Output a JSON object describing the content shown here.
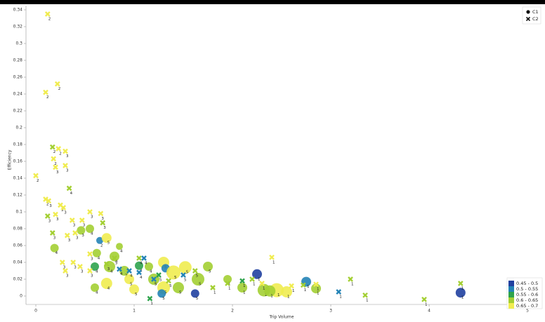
{
  "chart_data": {
    "type": "scatter",
    "x_label": "Trip Volume",
    "y_label": "Efficiency",
    "xlim": [
      -0.1,
      5.1
    ],
    "ylim": [
      -0.01,
      0.345
    ],
    "xticks": [
      0,
      1,
      2,
      3,
      4,
      5
    ],
    "yticks": [
      0,
      0.02,
      0.04,
      0.06,
      0.08,
      0.1,
      0.12,
      0.14,
      0.16,
      0.18,
      0.2,
      0.22,
      0.24,
      0.26,
      0.28,
      0.3,
      0.32,
      0.34
    ],
    "legend": "top-right",
    "color_scale": {
      "bins": [
        0.45,
        0.5,
        0.55,
        0.6,
        0.65,
        0.7
      ],
      "labels": [
        "0.45 - 0.5",
        "0.5 - 0.55",
        "0.55 - 0.6",
        "0.6 - 0.65",
        "0.65 - 0.7"
      ],
      "colors": [
        "#2040a0",
        "#2383b6",
        "#2ea34c",
        "#a3cf33",
        "#f0ec50"
      ],
      "legend": "bottom-right"
    },
    "series": [
      {
        "name": "C1",
        "marker": "circle",
        "x": [
          0.19,
          0.46,
          0.55,
          0.65,
          0.72,
          0.85,
          0.62,
          0.8,
          0.75,
          0.6,
          0.9,
          1.05,
          1.15,
          1.3,
          1.32,
          1.52,
          1.75,
          1.65,
          1.4,
          1.2,
          0.95,
          1.0,
          1.3,
          1.45,
          1.28,
          0.6,
          0.72,
          1.62,
          1.95,
          2.1,
          2.25,
          2.32,
          2.45,
          2.38,
          2.55,
          2.75,
          2.85,
          4.32
        ],
        "values": [
          0.057,
          0.078,
          0.08,
          0.066,
          0.069,
          0.059,
          0.051,
          0.047,
          0.035,
          0.035,
          0.03,
          0.036,
          0.035,
          0.04,
          0.033,
          0.034,
          0.035,
          0.02,
          0.028,
          0.02,
          0.02,
          0.008,
          0.01,
          0.01,
          0.003,
          0.01,
          0.015,
          0.003,
          0.02,
          0.01,
          0.026,
          0.007,
          0.007,
          0.006,
          0.005,
          0.017,
          0.009,
          0.004
        ],
        "sizes": [
          6,
          6,
          6,
          5,
          7,
          5,
          6,
          7,
          8,
          6,
          7,
          6,
          6,
          8,
          6,
          9,
          7,
          9,
          10,
          8,
          7,
          7,
          9,
          8,
          6,
          6,
          8,
          6,
          6,
          7,
          7,
          9,
          10,
          8,
          8,
          7,
          7,
          7
        ],
        "z": [
          0.6,
          0.6,
          0.6,
          0.52,
          0.66,
          0.6,
          0.6,
          0.63,
          0.6,
          0.55,
          0.6,
          0.55,
          0.6,
          0.66,
          0.52,
          0.65,
          0.6,
          0.63,
          0.68,
          0.62,
          0.66,
          0.66,
          0.68,
          0.6,
          0.5,
          0.6,
          0.67,
          0.48,
          0.6,
          0.64,
          0.47,
          0.6,
          0.66,
          0.63,
          0.66,
          0.52,
          0.62,
          0.46
        ],
        "labels": [
          "4",
          "3",
          "4",
          "2",
          "5",
          "4",
          "4",
          "4",
          "4",
          "4",
          "3",
          "4",
          "4",
          "5",
          "5",
          "5",
          "5",
          "5",
          "5",
          "5",
          "5",
          "5",
          "5",
          "5",
          "5",
          "4",
          "4",
          "5",
          "1",
          "1",
          "1",
          "1",
          "1",
          "1",
          "1",
          "1",
          "1",
          "1"
        ]
      },
      {
        "name": "C2",
        "marker": "cross",
        "x": [
          0.12,
          0.1,
          0.22,
          0.0,
          0.17,
          0.23,
          0.3,
          0.18,
          0.3,
          0.2,
          0.34,
          0.1,
          0.13,
          0.25,
          0.28,
          0.12,
          0.2,
          0.37,
          0.55,
          0.66,
          0.68,
          0.17,
          0.32,
          0.4,
          0.47,
          0.27,
          0.38,
          0.3,
          0.45,
          0.55,
          0.55,
          0.72,
          0.8,
          0.95,
          1.05,
          1.05,
          1.2,
          1.25,
          1.35,
          1.5,
          1.62,
          1.8,
          1.95,
          2.1,
          2.2,
          2.3,
          2.4,
          2.6,
          2.72,
          2.85,
          3.08,
          3.2,
          3.35,
          3.95,
          4.32,
          1.16,
          1.1,
          0.85
        ],
        "values": [
          0.335,
          0.242,
          0.252,
          0.143,
          0.177,
          0.175,
          0.172,
          0.163,
          0.155,
          0.153,
          0.128,
          0.115,
          0.113,
          0.108,
          0.105,
          0.095,
          0.097,
          0.09,
          0.1,
          0.098,
          0.087,
          0.075,
          0.072,
          0.075,
          0.09,
          0.04,
          0.04,
          0.03,
          0.035,
          0.05,
          0.03,
          0.038,
          0.045,
          0.03,
          0.028,
          0.045,
          0.02,
          0.025,
          0.018,
          0.025,
          0.03,
          0.01,
          0.015,
          0.018,
          0.02,
          0.015,
          0.046,
          0.012,
          0.013,
          0.014,
          0.005,
          0.02,
          0.001,
          -0.004,
          0.015,
          -0.003,
          0.045,
          0.032
        ],
        "z": [
          0.68,
          0.67,
          0.66,
          0.67,
          0.64,
          0.66,
          0.66,
          0.65,
          0.65,
          0.66,
          0.62,
          0.66,
          0.67,
          0.66,
          0.67,
          0.62,
          0.66,
          0.66,
          0.66,
          0.66,
          0.6,
          0.64,
          0.66,
          0.66,
          0.66,
          0.66,
          0.66,
          0.66,
          0.66,
          0.66,
          0.67,
          0.62,
          0.6,
          0.5,
          0.5,
          0.64,
          0.54,
          0.55,
          0.6,
          0.52,
          0.6,
          0.62,
          0.6,
          0.55,
          0.62,
          0.66,
          0.68,
          0.66,
          0.62,
          0.68,
          0.52,
          0.6,
          0.62,
          0.6,
          0.6,
          0.58,
          0.54,
          0.5
        ],
        "labels": [
          "2",
          "2",
          "2",
          "2",
          "2",
          "2",
          "3",
          "2",
          "3",
          "3",
          "4",
          "2",
          "3",
          "3",
          "3",
          "3",
          "3",
          "3",
          "3",
          "3",
          "3",
          "3",
          "3",
          "3",
          "3",
          "3",
          "3",
          "3",
          "3",
          "3",
          "3",
          "3",
          "5",
          "4",
          "4",
          "4",
          "5",
          "5",
          "5",
          "5",
          "5",
          "1",
          "1",
          "1",
          "1",
          "1",
          "1",
          "1",
          "1",
          "1",
          "1",
          "1",
          "1",
          "1",
          "1",
          "1",
          "4",
          "4"
        ]
      }
    ]
  }
}
